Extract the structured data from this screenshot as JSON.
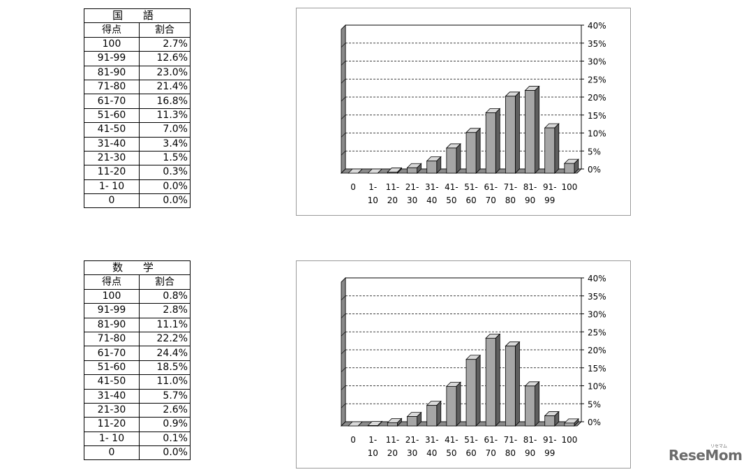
{
  "kokugo": {
    "title": "国 語",
    "header": [
      "得点",
      "割合"
    ],
    "rows": [
      [
        "100",
        "2.7%"
      ],
      [
        "91-99",
        "12.6%"
      ],
      [
        "81-90",
        "23.0%"
      ],
      [
        "71-80",
        "21.4%"
      ],
      [
        "61-70",
        "16.8%"
      ],
      [
        "51-60",
        "11.3%"
      ],
      [
        "41-50",
        "7.0%"
      ],
      [
        "31-40",
        "3.4%"
      ],
      [
        "21-30",
        "1.5%"
      ],
      [
        "11-20",
        "0.3%"
      ],
      [
        "1- 10",
        "0.0%"
      ],
      [
        "0",
        "0.0%"
      ]
    ]
  },
  "sugaku": {
    "title": "数 学",
    "header": [
      "得点",
      "割合"
    ],
    "rows": [
      [
        "100",
        "0.8%"
      ],
      [
        "91-99",
        "2.8%"
      ],
      [
        "81-90",
        "11.1%"
      ],
      [
        "71-80",
        "22.2%"
      ],
      [
        "61-70",
        "24.4%"
      ],
      [
        "51-60",
        "18.5%"
      ],
      [
        "41-50",
        "11.0%"
      ],
      [
        "31-40",
        "5.7%"
      ],
      [
        "21-30",
        "2.6%"
      ],
      [
        "11-20",
        "0.9%"
      ],
      [
        "1- 10",
        "0.1%"
      ],
      [
        "0",
        "0.0%"
      ]
    ]
  },
  "chart_data": [
    {
      "type": "bar",
      "categories": [
        [
          "0",
          ""
        ],
        [
          "1-",
          "10"
        ],
        [
          "11-",
          "20"
        ],
        [
          "21-",
          "30"
        ],
        [
          "31-",
          "40"
        ],
        [
          "41-",
          "50"
        ],
        [
          "51-",
          "60"
        ],
        [
          "61-",
          "70"
        ],
        [
          "71-",
          "80"
        ],
        [
          "81-",
          "90"
        ],
        [
          "91-",
          "99"
        ],
        [
          "100",
          ""
        ]
      ],
      "values": [
        0.0,
        0.0,
        0.3,
        1.5,
        3.4,
        7.0,
        11.3,
        16.8,
        21.4,
        23.0,
        12.6,
        2.7
      ],
      "yticks": [
        "0%",
        "5%",
        "10%",
        "15%",
        "20%",
        "25%",
        "30%",
        "35%",
        "40%"
      ],
      "ylim": [
        0,
        40
      ],
      "grid": true,
      "bar_color": "#a6a6a6"
    },
    {
      "type": "bar",
      "categories": [
        [
          "0",
          ""
        ],
        [
          "1-",
          "10"
        ],
        [
          "11-",
          "20"
        ],
        [
          "21-",
          "30"
        ],
        [
          "31-",
          "40"
        ],
        [
          "41-",
          "50"
        ],
        [
          "51-",
          "60"
        ],
        [
          "61-",
          "70"
        ],
        [
          "71-",
          "80"
        ],
        [
          "81-",
          "90"
        ],
        [
          "91-",
          "99"
        ],
        [
          "100",
          ""
        ]
      ],
      "values": [
        0.0,
        0.1,
        0.9,
        2.6,
        5.7,
        11.0,
        18.5,
        24.4,
        22.2,
        11.1,
        2.8,
        0.8
      ],
      "yticks": [
        "0%",
        "5%",
        "10%",
        "15%",
        "20%",
        "25%",
        "30%",
        "35%",
        "40%"
      ],
      "ylim": [
        0,
        40
      ],
      "grid": true,
      "bar_color": "#a6a6a6"
    }
  ],
  "logo": {
    "text": "ReseMom",
    "sub": "リセマム"
  }
}
